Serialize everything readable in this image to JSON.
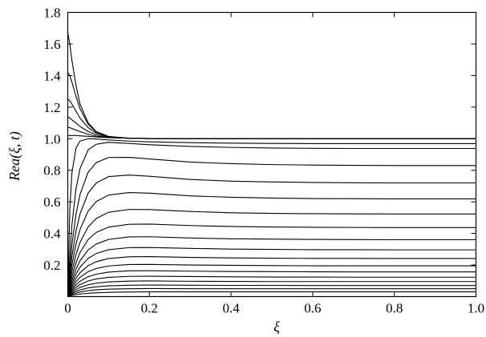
{
  "chart_data": {
    "type": "line",
    "xlabel": "ξ",
    "ylabel": "Rea(ξ, t)",
    "xlim": [
      0,
      1.0
    ],
    "ylim": [
      0,
      1.8
    ],
    "x_ticks": [
      "0",
      "0.2",
      "0.4",
      "0.6",
      "0.8",
      "1.0"
    ],
    "y_ticks": [
      "0.2",
      "0.4",
      "0.6",
      "0.8",
      "1.0",
      "1.2",
      "1.4",
      "1.6",
      "1.8"
    ],
    "y_tick_values": [
      0.2,
      0.4,
      0.6,
      0.8,
      1.0,
      1.2,
      1.4,
      1.6,
      1.8
    ],
    "x_tick_values": [
      0,
      0.2,
      0.4,
      0.6,
      0.8,
      1.0
    ],
    "grid": false,
    "line_color": "#000000",
    "x": [
      0.0,
      0.005,
      0.01,
      0.02,
      0.03,
      0.05,
      0.07,
      0.1,
      0.15,
      0.2,
      0.3,
      0.4,
      0.5,
      0.6,
      0.7,
      0.8,
      0.9,
      1.0
    ],
    "series": [
      {
        "values": [
          0.0,
          0.004,
          0.007,
          0.012,
          0.016,
          0.021,
          0.024,
          0.027,
          0.029,
          0.03,
          0.03,
          0.03,
          0.03,
          0.03,
          0.03,
          0.03,
          0.03,
          0.03
        ]
      },
      {
        "values": [
          0.0,
          0.007,
          0.013,
          0.022,
          0.029,
          0.038,
          0.043,
          0.047,
          0.05,
          0.051,
          0.05,
          0.05,
          0.05,
          0.05,
          0.05,
          0.05,
          0.05,
          0.05
        ]
      },
      {
        "values": [
          0.0,
          0.01,
          0.019,
          0.032,
          0.042,
          0.055,
          0.062,
          0.068,
          0.072,
          0.073,
          0.072,
          0.071,
          0.071,
          0.07,
          0.07,
          0.07,
          0.07,
          0.07
        ]
      },
      {
        "values": [
          0.0,
          0.014,
          0.026,
          0.044,
          0.058,
          0.075,
          0.085,
          0.093,
          0.098,
          0.099,
          0.097,
          0.096,
          0.095,
          0.095,
          0.095,
          0.095,
          0.095,
          0.095
        ]
      },
      {
        "values": [
          0.0,
          0.018,
          0.034,
          0.058,
          0.076,
          0.099,
          0.112,
          0.122,
          0.128,
          0.129,
          0.127,
          0.125,
          0.124,
          0.124,
          0.123,
          0.123,
          0.123,
          0.123
        ]
      },
      {
        "values": [
          0.0,
          0.023,
          0.043,
          0.074,
          0.097,
          0.126,
          0.142,
          0.155,
          0.163,
          0.164,
          0.161,
          0.159,
          0.158,
          0.157,
          0.156,
          0.156,
          0.156,
          0.156
        ]
      },
      {
        "values": [
          0.0,
          0.029,
          0.054,
          0.093,
          0.122,
          0.158,
          0.178,
          0.194,
          0.203,
          0.204,
          0.2,
          0.198,
          0.196,
          0.195,
          0.195,
          0.195,
          0.195,
          0.195
        ]
      },
      {
        "values": [
          0.0,
          0.036,
          0.067,
          0.115,
          0.151,
          0.196,
          0.221,
          0.241,
          0.252,
          0.253,
          0.248,
          0.245,
          0.243,
          0.242,
          0.242,
          0.241,
          0.241,
          0.241
        ]
      },
      {
        "values": [
          0.0,
          0.045,
          0.083,
          0.142,
          0.186,
          0.242,
          0.273,
          0.297,
          0.31,
          0.311,
          0.305,
          0.301,
          0.299,
          0.297,
          0.297,
          0.296,
          0.296,
          0.296
        ]
      },
      {
        "values": [
          0.0,
          0.055,
          0.101,
          0.173,
          0.227,
          0.295,
          0.333,
          0.362,
          0.378,
          0.379,
          0.371,
          0.366,
          0.364,
          0.362,
          0.361,
          0.36,
          0.36,
          0.36
        ]
      },
      {
        "values": [
          0.0,
          0.068,
          0.125,
          0.213,
          0.279,
          0.362,
          0.407,
          0.44,
          0.458,
          0.459,
          0.45,
          0.444,
          0.441,
          0.439,
          0.438,
          0.437,
          0.437,
          0.437
        ]
      },
      {
        "values": [
          0.0,
          0.085,
          0.156,
          0.264,
          0.343,
          0.442,
          0.495,
          0.534,
          0.552,
          0.551,
          0.539,
          0.531,
          0.527,
          0.525,
          0.524,
          0.523,
          0.523,
          0.523
        ]
      },
      {
        "values": [
          0.0,
          0.108,
          0.197,
          0.33,
          0.425,
          0.542,
          0.602,
          0.643,
          0.659,
          0.655,
          0.638,
          0.629,
          0.624,
          0.621,
          0.62,
          0.619,
          0.619,
          0.619
        ]
      },
      {
        "values": [
          0.0,
          0.139,
          0.25,
          0.412,
          0.523,
          0.656,
          0.72,
          0.76,
          0.77,
          0.762,
          0.742,
          0.731,
          0.726,
          0.723,
          0.721,
          0.72,
          0.72,
          0.72
        ]
      },
      {
        "values": [
          0.0,
          0.182,
          0.324,
          0.519,
          0.647,
          0.788,
          0.849,
          0.881,
          0.882,
          0.872,
          0.852,
          0.842,
          0.836,
          0.833,
          0.831,
          0.83,
          0.83,
          0.83
        ]
      },
      {
        "values": [
          0.0,
          0.26,
          0.45,
          0.68,
          0.81,
          0.93,
          0.965,
          0.977,
          0.97,
          0.962,
          0.951,
          0.945,
          0.941,
          0.939,
          0.938,
          0.938,
          0.938,
          0.938
        ]
      },
      {
        "values": [
          0.02,
          0.55,
          0.78,
          0.94,
          0.985,
          1.0,
          0.998,
          0.992,
          0.985,
          0.98,
          0.975,
          0.972,
          0.97,
          0.969,
          0.969,
          0.969,
          0.969,
          0.969
        ]
      },
      {
        "values": [
          1.02,
          1.02,
          1.02,
          1.02,
          1.018,
          1.015,
          1.011,
          1.007,
          1.003,
          1.001,
          1.0,
          1.0,
          1.0,
          1.0,
          1.0,
          1.0,
          1.0,
          1.0
        ]
      },
      {
        "values": [
          1.07,
          1.07,
          1.065,
          1.055,
          1.045,
          1.028,
          1.016,
          1.008,
          1.003,
          1.001,
          1.0,
          1.0,
          1.0,
          1.0,
          1.0,
          1.0,
          1.0,
          1.0
        ]
      },
      {
        "values": [
          1.14,
          1.13,
          1.12,
          1.1,
          1.078,
          1.045,
          1.025,
          1.01,
          1.003,
          1.001,
          1.0,
          1.0,
          1.0,
          1.0,
          1.0,
          1.0,
          1.0,
          1.0
        ]
      },
      {
        "values": [
          1.25,
          1.24,
          1.22,
          1.175,
          1.13,
          1.07,
          1.035,
          1.013,
          1.003,
          1.001,
          1.0,
          1.0,
          1.0,
          1.0,
          1.0,
          1.0,
          1.0,
          1.0
        ]
      },
      {
        "values": [
          1.42,
          1.4,
          1.36,
          1.27,
          1.19,
          1.09,
          1.042,
          1.014,
          1.003,
          1.001,
          1.0,
          1.0,
          1.0,
          1.0,
          1.0,
          1.0,
          1.0,
          1.0
        ]
      },
      {
        "values": [
          1.67,
          1.6,
          1.5,
          1.34,
          1.22,
          1.1,
          1.045,
          1.014,
          1.003,
          1.001,
          1.0,
          1.0,
          1.0,
          1.0,
          1.0,
          1.0,
          1.0,
          1.0
        ]
      }
    ]
  }
}
